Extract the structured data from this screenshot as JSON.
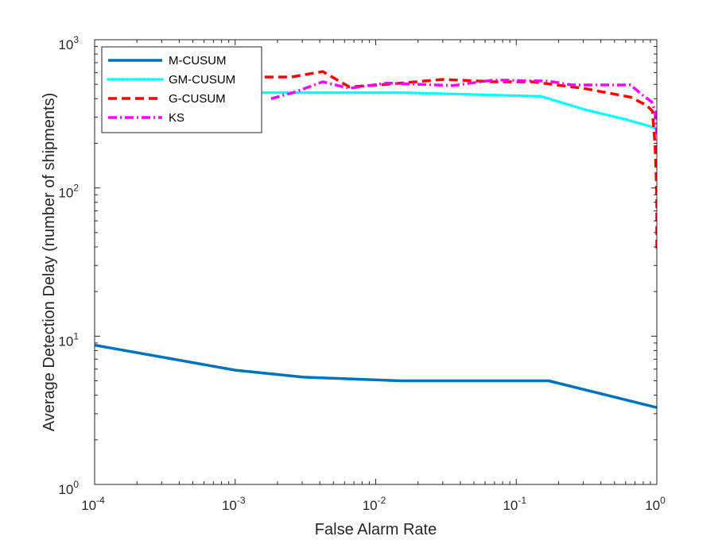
{
  "chart_data": {
    "type": "line",
    "title": "",
    "xlabel": "False Alarm Rate",
    "ylabel": "Average Detection Delay (number of shipments)",
    "xscale": "log",
    "yscale": "log",
    "xlim": [
      0.0001,
      1
    ],
    "ylim": [
      1,
      1000
    ],
    "xticks": [
      {
        "value": 0.0001,
        "base": "10",
        "exp": "-4"
      },
      {
        "value": 0.001,
        "base": "10",
        "exp": "-3"
      },
      {
        "value": 0.01,
        "base": "10",
        "exp": "-2"
      },
      {
        "value": 0.1,
        "base": "10",
        "exp": "-1"
      },
      {
        "value": 1,
        "base": "10",
        "exp": "0"
      }
    ],
    "yticks": [
      {
        "value": 1,
        "base": "10",
        "exp": "0"
      },
      {
        "value": 10,
        "base": "10",
        "exp": "1"
      },
      {
        "value": 100,
        "base": "10",
        "exp": "2"
      },
      {
        "value": 1000,
        "base": "10",
        "exp": "3"
      }
    ],
    "legend_position": "top-left",
    "grid": false,
    "series": [
      {
        "name": "M-CUSUM",
        "color": "#0072bd",
        "style": "solid",
        "x": [
          0.0001,
          0.001,
          0.003,
          0.015,
          0.17,
          1
        ],
        "y": [
          8.7,
          5.9,
          5.3,
          5.0,
          5.0,
          3.3
        ]
      },
      {
        "name": "GM-CUSUM",
        "color": "#00ffff",
        "style": "dotted",
        "x": [
          0.0006,
          0.0011,
          0.004,
          0.015,
          0.15,
          0.3,
          0.6,
          0.9,
          1
        ],
        "y": [
          440,
          440,
          440,
          440,
          415,
          340,
          290,
          260,
          250
        ]
      },
      {
        "name": "G-CUSUM",
        "color": "#ff0000",
        "style": "dashed",
        "x": [
          0.0013,
          0.0025,
          0.0042,
          0.0065,
          0.012,
          0.03,
          0.07,
          0.13,
          0.3,
          0.65,
          0.85,
          0.93,
          0.97,
          0.99,
          1,
          1,
          1
        ],
        "y": [
          560,
          560,
          610,
          480,
          500,
          540,
          520,
          520,
          470,
          410,
          360,
          330,
          200,
          120,
          80,
          50,
          38
        ]
      },
      {
        "name": "KS",
        "color": "#ff00ff",
        "style": "dashdot",
        "x": [
          0.0018,
          0.0026,
          0.0042,
          0.0065,
          0.012,
          0.035,
          0.07,
          0.17,
          0.25,
          0.45,
          0.65,
          0.8,
          0.92,
          0.97,
          1
        ],
        "y": [
          400,
          440,
          520,
          470,
          510,
          490,
          535,
          525,
          495,
          495,
          495,
          420,
          380,
          330,
          230
        ]
      }
    ]
  }
}
